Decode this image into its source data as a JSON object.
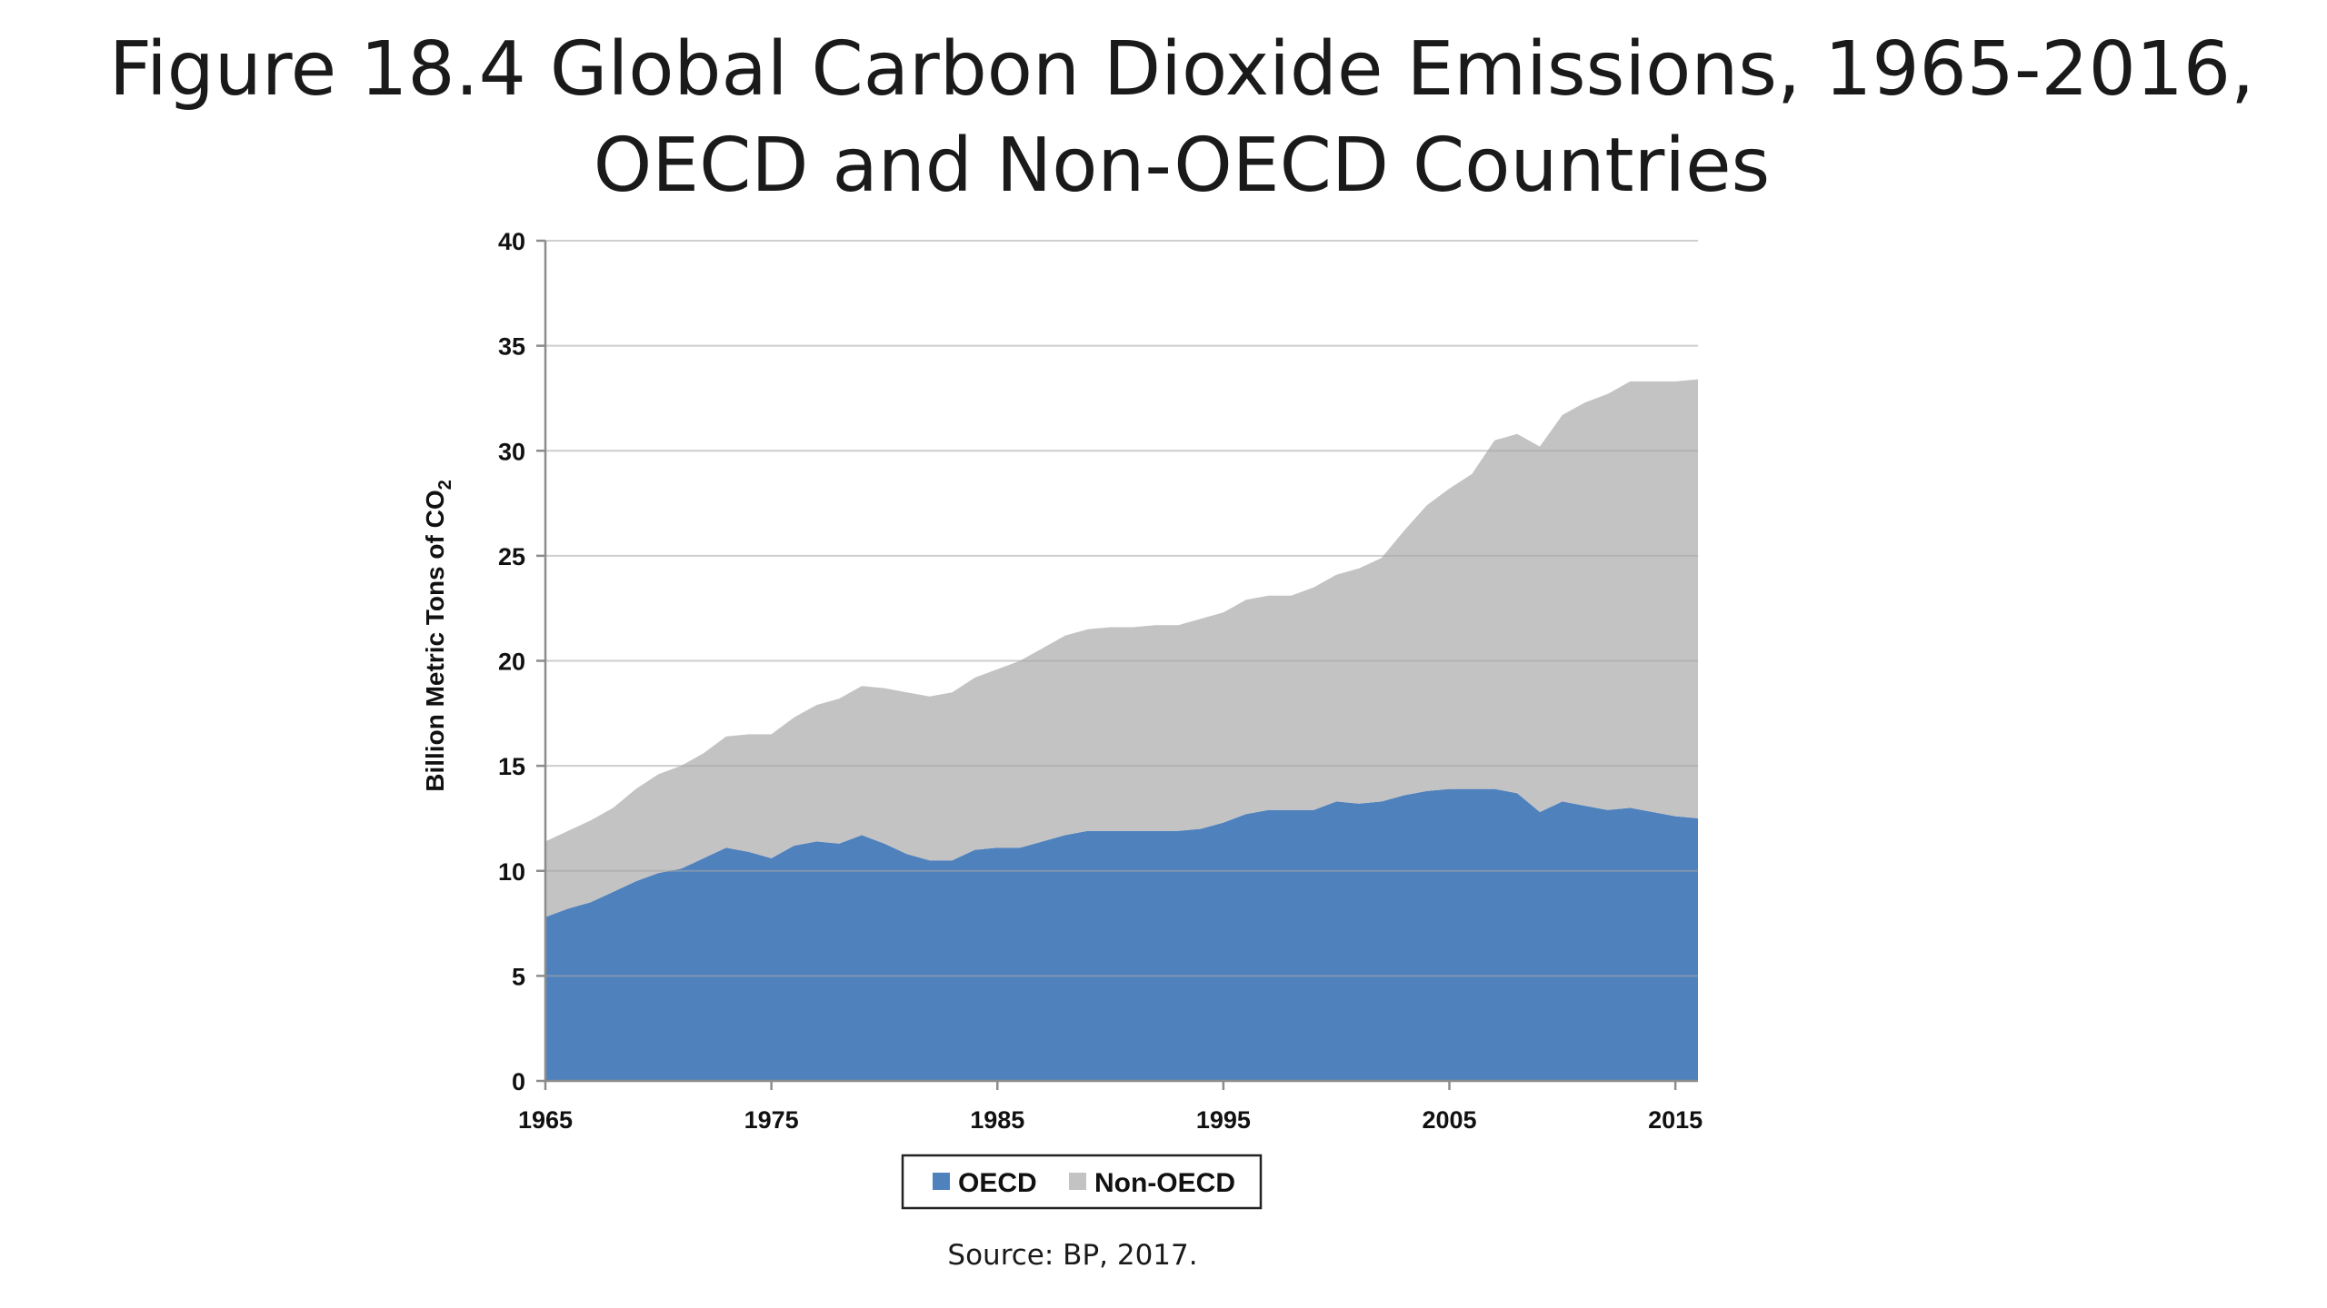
{
  "chart_data": {
    "type": "area",
    "stacked": true,
    "title": "Figure 18.4 Global Carbon Dioxide Emissions, 1965-2016, OECD and Non-OECD Countries",
    "ylabel_main": "Billion Metric Tons of CO",
    "ylabel_sub": "2",
    "xlabel": "",
    "xlim": [
      1965,
      2016
    ],
    "ylim": [
      0,
      40
    ],
    "x_ticks": [
      1965,
      1975,
      1985,
      1995,
      2005,
      2015
    ],
    "y_ticks": [
      0,
      5,
      10,
      15,
      20,
      25,
      30,
      35,
      40
    ],
    "grid": "horizontal",
    "legend": "bottom",
    "x": [
      1965,
      1966,
      1967,
      1968,
      1969,
      1970,
      1971,
      1972,
      1973,
      1974,
      1975,
      1976,
      1977,
      1978,
      1979,
      1980,
      1981,
      1982,
      1983,
      1984,
      1985,
      1986,
      1987,
      1988,
      1989,
      1990,
      1991,
      1992,
      1993,
      1994,
      1995,
      1996,
      1997,
      1998,
      1999,
      2000,
      2001,
      2002,
      2003,
      2004,
      2005,
      2006,
      2007,
      2008,
      2009,
      2010,
      2011,
      2012,
      2013,
      2014,
      2015,
      2016
    ],
    "series": [
      {
        "name": "OECD",
        "color": "#4f81bd",
        "values": [
          7.8,
          8.2,
          8.5,
          9.0,
          9.5,
          9.9,
          10.1,
          10.6,
          11.1,
          10.9,
          10.6,
          11.2,
          11.4,
          11.3,
          11.7,
          11.3,
          10.8,
          10.5,
          10.5,
          11.0,
          11.1,
          11.1,
          11.4,
          11.7,
          11.9,
          11.9,
          11.9,
          11.9,
          11.9,
          12.0,
          12.3,
          12.7,
          12.9,
          12.9,
          12.9,
          13.3,
          13.2,
          13.3,
          13.6,
          13.8,
          13.9,
          13.9,
          13.9,
          13.7,
          12.8,
          13.3,
          13.1,
          12.9,
          13.0,
          12.8,
          12.6,
          12.5
        ]
      },
      {
        "name": "Non-OECD",
        "color": "#c3c3c3",
        "values": [
          3.6,
          3.7,
          3.9,
          4.0,
          4.4,
          4.7,
          4.9,
          5.0,
          5.3,
          5.6,
          5.9,
          6.1,
          6.5,
          6.9,
          7.1,
          7.4,
          7.7,
          7.8,
          8.0,
          8.2,
          8.5,
          8.9,
          9.2,
          9.5,
          9.6,
          9.7,
          9.7,
          9.8,
          9.8,
          10.0,
          10.0,
          10.2,
          10.2,
          10.2,
          10.6,
          10.8,
          11.2,
          11.6,
          12.6,
          13.6,
          14.3,
          15.0,
          16.6,
          17.1,
          17.4,
          18.4,
          19.2,
          19.8,
          20.3,
          20.5,
          20.7,
          20.9
        ]
      }
    ],
    "source": "Source: BP, 2017."
  }
}
